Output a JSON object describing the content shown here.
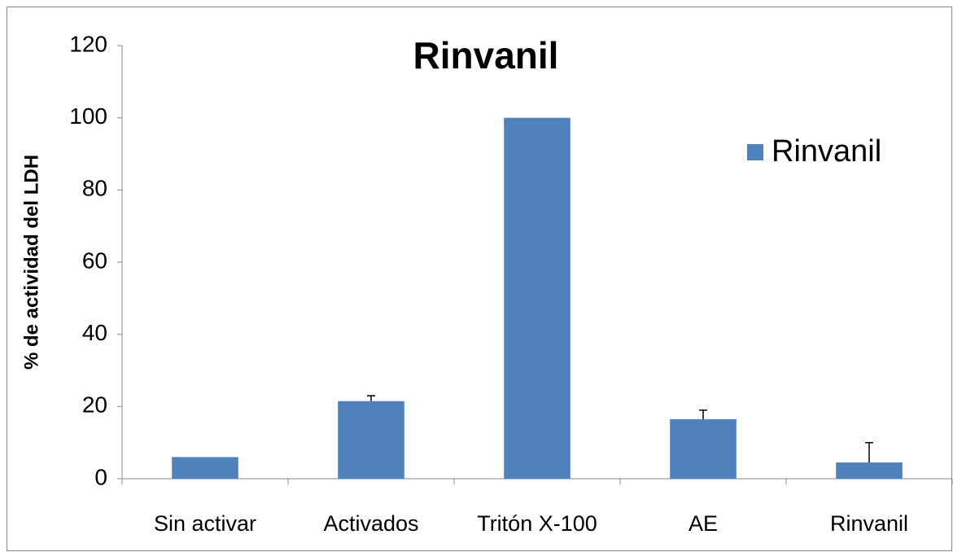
{
  "chart_data": {
    "type": "bar",
    "title": "Rinvanil",
    "y_label": "% de actividad del LDH",
    "categories": [
      "Sin activar",
      "Activados",
      "Tritón X-100",
      "AE",
      "Rinvanil"
    ],
    "series": [
      {
        "name": "Rinvanil",
        "color": "#4f81bd",
        "values": [
          6,
          21.5,
          100,
          16.5,
          4.5
        ],
        "errors": [
          null,
          1.5,
          null,
          2.5,
          5.5
        ]
      }
    ],
    "ylim": [
      0,
      120
    ],
    "yticks": [
      0,
      20,
      40,
      60,
      80,
      100,
      120
    ],
    "grid": false,
    "legend": "upper right"
  }
}
